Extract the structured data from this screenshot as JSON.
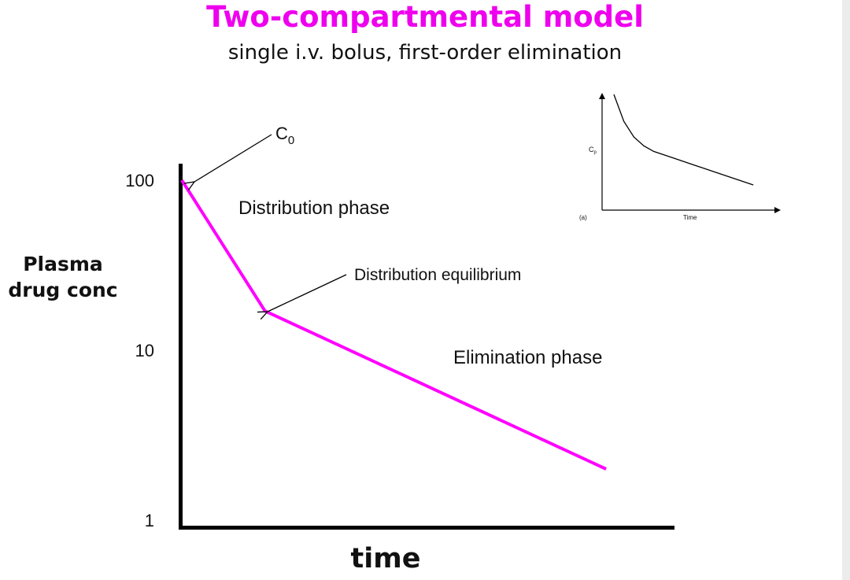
{
  "title": "Two-compartmental model",
  "subtitle": "single i.v. bolus, first-order elimination",
  "annotations": {
    "c0": "C",
    "c0_subscript": "0",
    "distribution_phase": "Distribution phase",
    "distribution_equilibrium": "Distribution equilibrium",
    "elimination_phase": "Elimination phase"
  },
  "colors": {
    "line": "#ff00ff",
    "title": "#ee00ee",
    "axis": "#000000"
  },
  "chart_data": [
    {
      "type": "line",
      "title": "Two-compartmental model",
      "subtitle": "single i.v. bolus, first-order elimination",
      "xlabel": "time",
      "ylabel_lines": [
        "Plasma",
        "drug conc"
      ],
      "y_scale": "log",
      "ylim": [
        1,
        100
      ],
      "y_ticks": [
        100,
        10,
        1
      ],
      "y_tick_labels": [
        "100",
        "10",
        "1"
      ],
      "grid": false,
      "series": [
        {
          "x": [
            0,
            1,
            5.1
          ],
          "y": [
            100,
            17,
            2
          ]
        }
      ]
    },
    {
      "type": "line",
      "panel_label": "(a)",
      "ylabel": "Cp",
      "ylabel_main": "C",
      "ylabel_sub": "p",
      "xlabel": "Time",
      "grid": false,
      "series": [
        {
          "x": [
            0,
            0.5,
            1,
            1.5,
            2,
            3,
            4,
            5,
            6,
            7
          ],
          "y": [
            10,
            7.6,
            6.2,
            5.4,
            4.9,
            4.3,
            3.7,
            3.1,
            2.5,
            1.9
          ]
        }
      ]
    }
  ]
}
